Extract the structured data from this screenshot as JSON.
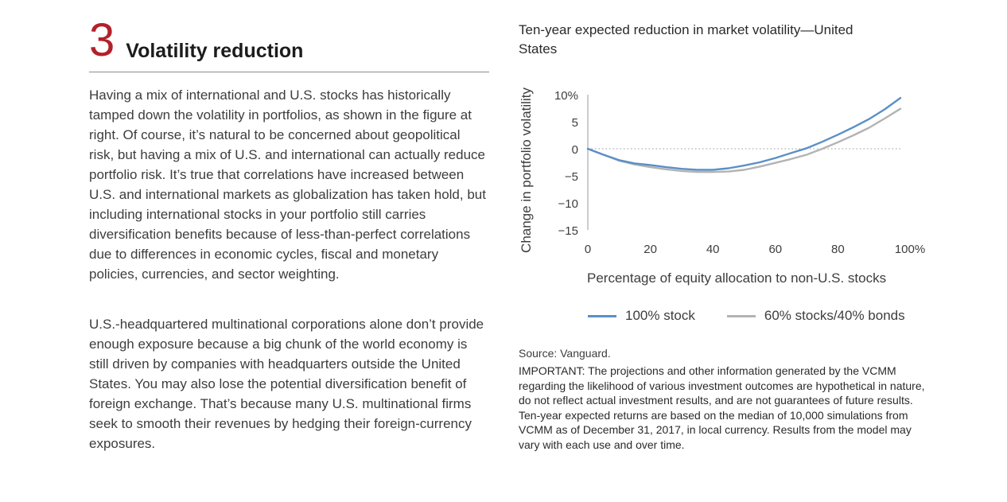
{
  "section": {
    "number": "3",
    "title": "Volatility reduction"
  },
  "body": {
    "paragraph1": "Having a mix of international and U.S. stocks has historically tamped down the volatility in portfolios, as shown in the figure at right. Of course, it’s natural to be concerned about geopolitical risk, but having a mix of U.S. and international can actually reduce portfolio risk. It’s true that correlations have increased between U.S. and international markets as globalization has taken hold, but including international stocks in your portfolio still carries diversification benefits because of less-than-perfect correlations due to differences in economic cycles, fiscal and monetary policies, currencies, and sector weighting.",
    "paragraph2": "U.S.-headquartered multinational corporations alone don’t provide enough exposure because a big chunk of the world economy is still driven by companies with headquarters outside the United States. You may also lose the potential diversification benefit of foreign exchange. That’s because many U.S. multinational firms seek to smooth their revenues by hedging their foreign-currency exposures."
  },
  "chart_data": {
    "type": "line",
    "title": "Ten-year expected reduction in market volatility—United States",
    "xlabel": "Percentage of equity allocation to non-U.S. stocks",
    "ylabel": "Change in portfolio volatility",
    "xlim": [
      0,
      100
    ],
    "ylim": [
      -15,
      10
    ],
    "x_ticks": [
      "0",
      "20",
      "40",
      "60",
      "80",
      "100%"
    ],
    "y_ticks": [
      "10%",
      "5",
      "0",
      "−5",
      "−10",
      "−15"
    ],
    "x_tick_values": [
      0,
      20,
      40,
      60,
      80,
      100
    ],
    "y_tick_values": [
      10,
      5,
      0,
      -5,
      -10,
      -15
    ],
    "reference_line": 0,
    "x": [
      0,
      5,
      10,
      15,
      20,
      25,
      30,
      35,
      40,
      45,
      50,
      55,
      60,
      65,
      70,
      75,
      80,
      85,
      90,
      95,
      100
    ],
    "series": [
      {
        "name": "100% stock",
        "color": "#5b8fc7",
        "values": [
          0,
          -1.1,
          -2.1,
          -2.7,
          -3.0,
          -3.4,
          -3.7,
          -3.9,
          -3.9,
          -3.6,
          -3.1,
          -2.5,
          -1.7,
          -0.8,
          0.1,
          1.3,
          2.6,
          4.0,
          5.5,
          7.3,
          9.4
        ]
      },
      {
        "name": "60% stocks/40% bonds",
        "color": "#b3b3b3",
        "values": [
          0,
          -1.1,
          -2.2,
          -2.9,
          -3.4,
          -3.8,
          -4.1,
          -4.3,
          -4.3,
          -4.2,
          -3.9,
          -3.3,
          -2.6,
          -1.9,
          -1.1,
          0.0,
          1.2,
          2.5,
          3.9,
          5.6,
          7.4
        ]
      }
    ]
  },
  "legend": {
    "item1": "100% stock",
    "item2": "60% stocks/40% bonds"
  },
  "notes": {
    "source": "Source: Vanguard.",
    "important": "IMPORTANT: The projections and other information generated by the VCMM regarding the likelihood of various investment outcomes are hypothetical in nature, do not reflect actual investment results, and are not guarantees of future results. Ten-year expected returns are based on the median of 10,000 simulations from VCMM as of December 31, 2017, in local currency. Results from the model may vary with each use and over time."
  }
}
